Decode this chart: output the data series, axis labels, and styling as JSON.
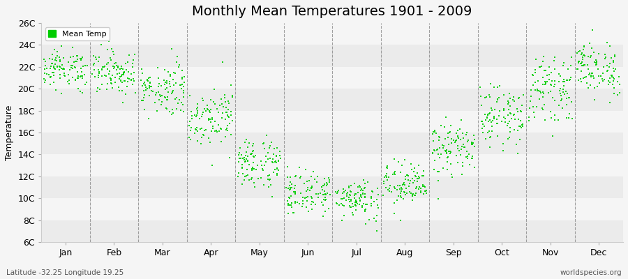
{
  "title": "Monthly Mean Temperatures 1901 - 2009",
  "ylabel": "Temperature",
  "subtitle": "Latitude -32.25 Longitude 19.25",
  "watermark": "worldspecies.org",
  "legend_label": "Mean Temp",
  "months": [
    "Jan",
    "Feb",
    "Mar",
    "Apr",
    "May",
    "Jun",
    "Jul",
    "Aug",
    "Sep",
    "Oct",
    "Nov",
    "Dec"
  ],
  "ytick_labels": [
    "6C",
    "8C",
    "10C",
    "12C",
    "14C",
    "16C",
    "18C",
    "20C",
    "22C",
    "24C",
    "26C"
  ],
  "ytick_values": [
    6,
    8,
    10,
    12,
    14,
    16,
    18,
    20,
    22,
    24,
    26
  ],
  "ylim": [
    6,
    26
  ],
  "dot_color": "#00cc00",
  "dot_size": 3,
  "start_year": 1901,
  "end_year": 2009,
  "month_means": [
    21.8,
    21.5,
    20.0,
    17.5,
    13.2,
    10.5,
    10.0,
    11.2,
    14.5,
    17.5,
    20.0,
    21.8
  ],
  "month_stds": [
    0.9,
    1.0,
    1.2,
    1.3,
    1.2,
    1.0,
    0.9,
    1.0,
    1.2,
    1.3,
    1.4,
    1.2
  ],
  "band_colors_even": "#ebebeb",
  "band_colors_odd": "#f5f5f5",
  "background_color": "#f5f5f5",
  "title_fontsize": 14,
  "axis_label_fontsize": 9,
  "tick_fontsize": 9
}
